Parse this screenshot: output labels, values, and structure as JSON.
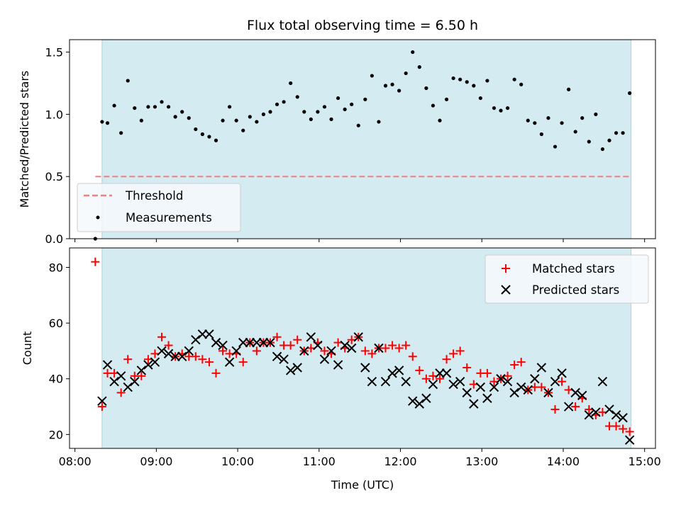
{
  "chart_data": {
    "title": "Flux total observing time = 6.50 h",
    "xlabel": "Time (UTC)",
    "x_ticks": [
      "08:00",
      "09:00",
      "10:00",
      "11:00",
      "12:00",
      "13:00",
      "14:00",
      "15:00"
    ],
    "xlim": [
      "07:56",
      "15:08"
    ],
    "observing_window": [
      "08:20",
      "14:50"
    ],
    "colors": {
      "window": "#d4ebf1",
      "window_edge": "#a7d3dd",
      "threshold": "#f08080",
      "matched": "#ff0000",
      "predicted": "#000000",
      "measurement": "#000000"
    },
    "panels": [
      {
        "type": "scatter",
        "ylabel": "Matched/Predicted stars",
        "ylim": [
          0,
          1.6
        ],
        "y_ticks": [
          "0.0",
          "0.5",
          "1.0",
          "1.5"
        ],
        "legend_placement": "lower-left",
        "threshold": {
          "name": "Threshold",
          "value": 0.5,
          "x_range": [
            "08:15",
            "14:50"
          ]
        },
        "series": [
          {
            "name": "Measurements",
            "marker": "dot",
            "x": [
              "08:15",
              "08:20",
              "08:24",
              "08:29",
              "08:34",
              "08:39",
              "08:44",
              "08:49",
              "08:54",
              "08:59",
              "09:04",
              "09:09",
              "09:14",
              "09:19",
              "09:24",
              "09:29",
              "09:34",
              "09:39",
              "09:44",
              "09:49",
              "09:54",
              "09:59",
              "10:04",
              "10:09",
              "10:14",
              "10:19",
              "10:24",
              "10:29",
              "10:34",
              "10:39",
              "10:44",
              "10:49",
              "10:54",
              "10:59",
              "11:04",
              "11:09",
              "11:14",
              "11:19",
              "11:24",
              "11:29",
              "11:34",
              "11:39",
              "11:44",
              "11:49",
              "11:54",
              "11:59",
              "12:04",
              "12:09",
              "12:14",
              "12:19",
              "12:24",
              "12:29",
              "12:34",
              "12:39",
              "12:44",
              "12:49",
              "12:54",
              "12:59",
              "13:04",
              "13:09",
              "13:14",
              "13:19",
              "13:24",
              "13:29",
              "13:34",
              "13:39",
              "13:44",
              "13:49",
              "13:54",
              "13:59",
              "14:04",
              "14:09",
              "14:14",
              "14:19",
              "14:24",
              "14:29",
              "14:34",
              "14:39",
              "14:44",
              "14:49"
            ],
            "y": [
              0.0,
              0.94,
              0.93,
              1.07,
              0.85,
              1.27,
              1.05,
              0.95,
              1.06,
              1.06,
              1.1,
              1.06,
              0.98,
              1.02,
              0.97,
              0.88,
              0.84,
              0.82,
              0.79,
              0.95,
              1.06,
              0.95,
              0.87,
              0.98,
              0.94,
              1.0,
              1.02,
              1.08,
              1.1,
              1.25,
              1.14,
              1.02,
              0.96,
              1.02,
              1.06,
              0.96,
              1.13,
              1.04,
              1.08,
              0.91,
              1.12,
              1.31,
              0.94,
              1.23,
              1.24,
              1.19,
              1.33,
              1.5,
              1.38,
              1.21,
              1.07,
              0.95,
              1.12,
              1.29,
              1.28,
              1.26,
              1.23,
              1.13,
              1.27,
              1.05,
              1.03,
              1.05,
              1.28,
              1.24,
              0.95,
              0.93,
              0.84,
              0.97,
              0.74,
              0.93,
              1.2,
              0.86,
              0.97,
              0.78,
              1.0,
              0.72,
              0.79,
              0.85,
              0.85,
              1.17
            ]
          }
        ]
      },
      {
        "type": "scatter",
        "ylabel": "Count",
        "ylim": [
          15,
          87
        ],
        "y_ticks": [
          "20",
          "40",
          "60",
          "80"
        ],
        "legend_placement": "top-right",
        "series": [
          {
            "name": "Matched stars",
            "marker": "plus",
            "x": [
              "08:15",
              "08:20",
              "08:24",
              "08:29",
              "08:34",
              "08:39",
              "08:44",
              "08:49",
              "08:54",
              "08:59",
              "09:04",
              "09:09",
              "09:14",
              "09:19",
              "09:24",
              "09:29",
              "09:34",
              "09:39",
              "09:44",
              "09:49",
              "09:54",
              "09:59",
              "10:04",
              "10:09",
              "10:14",
              "10:19",
              "10:24",
              "10:29",
              "10:34",
              "10:39",
              "10:44",
              "10:49",
              "10:54",
              "10:59",
              "11:04",
              "11:09",
              "11:14",
              "11:19",
              "11:24",
              "11:29",
              "11:34",
              "11:39",
              "11:44",
              "11:49",
              "11:54",
              "11:59",
              "12:04",
              "12:09",
              "12:14",
              "12:19",
              "12:24",
              "12:29",
              "12:34",
              "12:39",
              "12:44",
              "12:49",
              "12:54",
              "12:59",
              "13:04",
              "13:09",
              "13:14",
              "13:19",
              "13:24",
              "13:29",
              "13:34",
              "13:39",
              "13:44",
              "13:49",
              "13:54",
              "13:59",
              "14:04",
              "14:09",
              "14:14",
              "14:19",
              "14:24",
              "14:29",
              "14:34",
              "14:39",
              "14:44",
              "14:49"
            ],
            "y": [
              82,
              30,
              42,
              42,
              35,
              47,
              41,
              41,
              47,
              49,
              55,
              52,
              48,
              49,
              48,
              48,
              47,
              46,
              42,
              50,
              49,
              49,
              46,
              53,
              50,
              53,
              53,
              55,
              52,
              52,
              54,
              50,
              51,
              53,
              50,
              49,
              53,
              51,
              54,
              55,
              50,
              49,
              51,
              51,
              52,
              51,
              52,
              48,
              43,
              40,
              41,
              40,
              47,
              49,
              50,
              44,
              38,
              42,
              42,
              39,
              40,
              41,
              45,
              46,
              36,
              37,
              37,
              35,
              29,
              39,
              36,
              30,
              33,
              29,
              27,
              28,
              23,
              23,
              22,
              21
            ]
          },
          {
            "name": "Predicted stars",
            "marker": "x",
            "x": [
              "08:20",
              "08:24",
              "08:29",
              "08:34",
              "08:39",
              "08:44",
              "08:49",
              "08:54",
              "08:59",
              "09:04",
              "09:09",
              "09:14",
              "09:19",
              "09:24",
              "09:29",
              "09:34",
              "09:39",
              "09:44",
              "09:49",
              "09:54",
              "09:59",
              "10:04",
              "10:09",
              "10:14",
              "10:19",
              "10:24",
              "10:29",
              "10:34",
              "10:39",
              "10:44",
              "10:49",
              "10:54",
              "10:59",
              "11:04",
              "11:09",
              "11:14",
              "11:19",
              "11:24",
              "11:29",
              "11:34",
              "11:39",
              "11:44",
              "11:49",
              "11:54",
              "11:59",
              "12:04",
              "12:09",
              "12:14",
              "12:19",
              "12:24",
              "12:29",
              "12:34",
              "12:39",
              "12:44",
              "12:49",
              "12:54",
              "12:59",
              "13:04",
              "13:09",
              "13:14",
              "13:19",
              "13:24",
              "13:29",
              "13:34",
              "13:39",
              "13:44",
              "13:49",
              "13:54",
              "13:59",
              "14:04",
              "14:09",
              "14:14",
              "14:19",
              "14:24",
              "14:29",
              "14:34",
              "14:39",
              "14:44",
              "14:49"
            ],
            "y": [
              32,
              45,
              39,
              41,
              37,
              39,
              43,
              45,
              46,
              50,
              49,
              48,
              48,
              50,
              54,
              56,
              56,
              53,
              52,
              46,
              50,
              53,
              53,
              53,
              53,
              53,
              48,
              47,
              43,
              44,
              50,
              55,
              52,
              47,
              50,
              45,
              52,
              51,
              55,
              44,
              39,
              51,
              39,
              42,
              43,
              39,
              32,
              31,
              33,
              38,
              42,
              42,
              38,
              39,
              35,
              31,
              37,
              33,
              37,
              40,
              39,
              35,
              37,
              36,
              40,
              44,
              35,
              39,
              42,
              30,
              35,
              34,
              27,
              28,
              39,
              29,
              27,
              26,
              18
            ]
          }
        ]
      }
    ]
  }
}
